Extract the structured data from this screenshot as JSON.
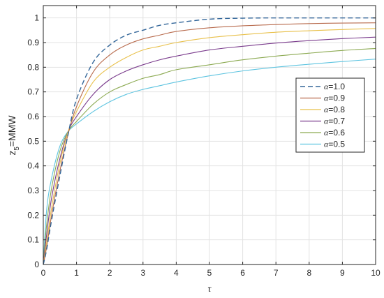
{
  "chart_data": {
    "type": "line",
    "title": "",
    "xlabel": "τ",
    "ylabel": {
      "main": "z",
      "sub": "5",
      "suffix": "=MMW"
    },
    "xlim": [
      0,
      10
    ],
    "ylim": [
      0,
      1.05
    ],
    "x_ticks": [
      "0",
      "1",
      "2",
      "3",
      "4",
      "5",
      "6",
      "7",
      "8",
      "9",
      "10"
    ],
    "y_ticks": [
      "0",
      "0.1",
      "0.2",
      "0.3",
      "0.4",
      "0.5",
      "0.6",
      "0.7",
      "0.8",
      "0.9",
      "1"
    ],
    "grid": true,
    "legend_position": "right",
    "x": [
      0,
      0.1,
      0.25,
      0.5,
      0.75,
      1,
      1.5,
      2,
      2.5,
      3,
      3.5,
      4,
      5,
      6,
      7,
      8,
      9,
      10
    ],
    "series": [
      {
        "name": "α=1.0",
        "greek": "α",
        "label_suffix": "=1.0",
        "color": "#336699",
        "dashed": true,
        "values": [
          0,
          0.06,
          0.18,
          0.36,
          0.53,
          0.67,
          0.82,
          0.89,
          0.93,
          0.95,
          0.97,
          0.98,
          0.995,
          0.999,
          1.0,
          1.0,
          1.0,
          1.0
        ]
      },
      {
        "name": "α=0.9",
        "greek": "α",
        "label_suffix": "=0.9",
        "color": "#b86b4d",
        "dashed": false,
        "values": [
          0,
          0.07,
          0.2,
          0.38,
          0.53,
          0.64,
          0.78,
          0.85,
          0.89,
          0.915,
          0.93,
          0.945,
          0.96,
          0.968,
          0.973,
          0.977,
          0.979,
          0.98
        ]
      },
      {
        "name": "α=0.8",
        "greek": "α",
        "label_suffix": "=0.8",
        "color": "#e8c04a",
        "dashed": false,
        "values": [
          0,
          0.09,
          0.23,
          0.41,
          0.54,
          0.62,
          0.74,
          0.8,
          0.84,
          0.87,
          0.885,
          0.9,
          0.92,
          0.932,
          0.942,
          0.948,
          0.953,
          0.957
        ]
      },
      {
        "name": "α=0.7",
        "greek": "α",
        "label_suffix": "=0.7",
        "color": "#7a3b8c",
        "dashed": false,
        "values": [
          0,
          0.12,
          0.27,
          0.43,
          0.54,
          0.6,
          0.69,
          0.75,
          0.785,
          0.81,
          0.83,
          0.845,
          0.87,
          0.885,
          0.898,
          0.908,
          0.916,
          0.922
        ]
      },
      {
        "name": "α=0.6",
        "greek": "α",
        "label_suffix": "=0.6",
        "color": "#8caa52",
        "dashed": false,
        "values": [
          0,
          0.16,
          0.31,
          0.46,
          0.54,
          0.58,
          0.65,
          0.7,
          0.73,
          0.755,
          0.77,
          0.79,
          0.81,
          0.83,
          0.845,
          0.857,
          0.868,
          0.876
        ]
      },
      {
        "name": "α=0.5",
        "greek": "α",
        "label_suffix": "=0.5",
        "color": "#5ec4e0",
        "dashed": false,
        "values": [
          0,
          0.22,
          0.35,
          0.48,
          0.54,
          0.57,
          0.62,
          0.66,
          0.69,
          0.71,
          0.725,
          0.74,
          0.765,
          0.785,
          0.8,
          0.812,
          0.823,
          0.833
        ]
      }
    ]
  }
}
